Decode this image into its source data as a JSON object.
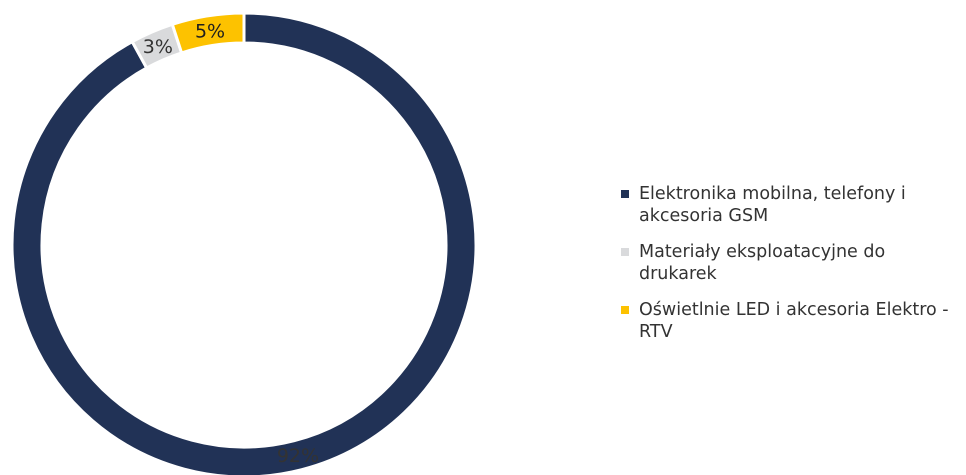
{
  "chart_data": {
    "type": "pie",
    "variant": "donut",
    "categories": [
      "Elektronika mobilna, telefony i akcesoria GSM",
      "Materiały eksploatacyjne do drukarek",
      "Oświetlnie LED i akcesoria Elektro - RTV"
    ],
    "values": [
      92,
      3,
      5
    ],
    "labels": [
      "92%",
      "3%",
      "5%"
    ],
    "colors": [
      "#213256",
      "#d9dadc",
      "#fdc200"
    ],
    "legend_position": "right"
  },
  "legend": {
    "items": [
      {
        "label": "Elektronika mobilna, telefony i akcesoria GSM",
        "color": "#213256"
      },
      {
        "label": "Materiały eksploatacyjne do drukarek",
        "color": "#d9dadc"
      },
      {
        "label": "Oświetlnie LED i akcesoria Elektro - RTV",
        "color": "#fdc200"
      }
    ]
  }
}
